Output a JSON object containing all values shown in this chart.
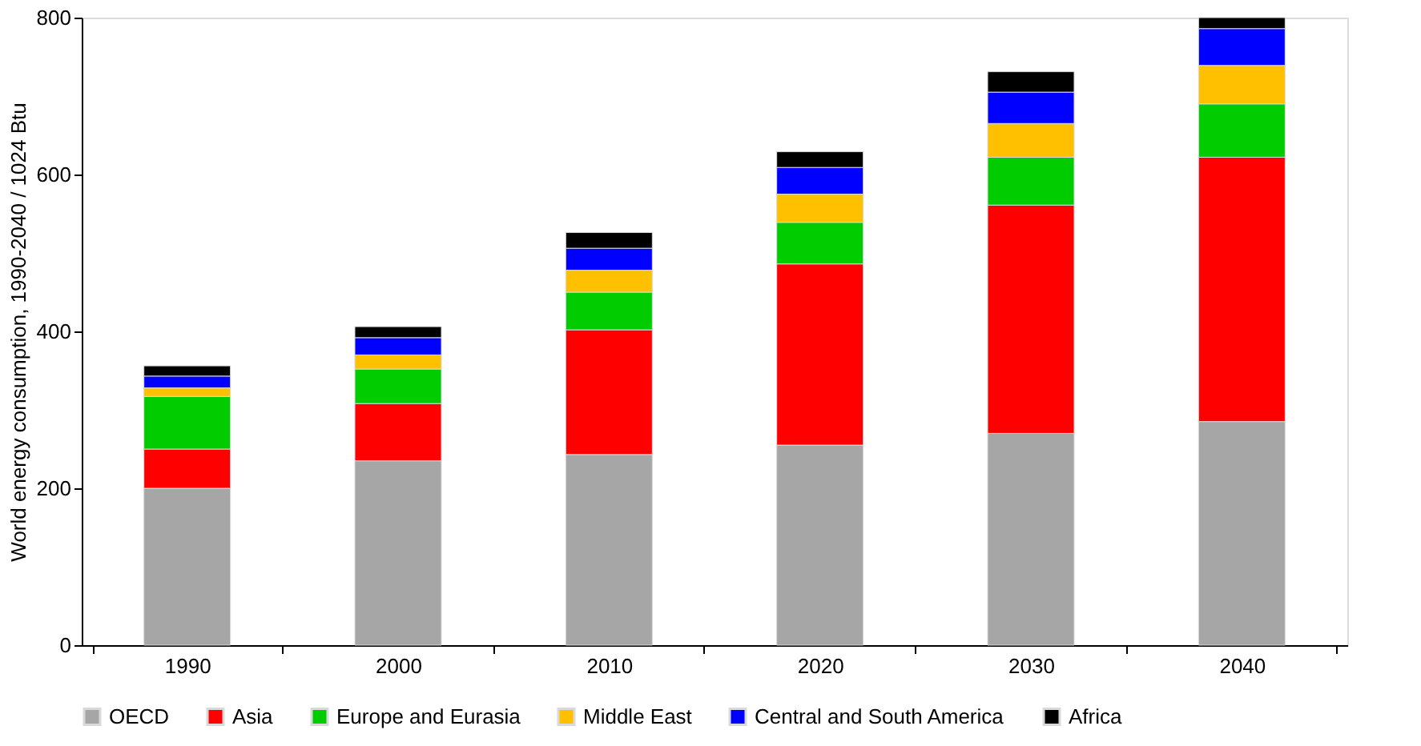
{
  "chart_data": {
    "type": "bar",
    "stacked": true,
    "ylabel": "World energy consumption, 1990-2040 / 1024 Btu",
    "categories": [
      "1990",
      "2000",
      "2010",
      "2020",
      "2030",
      "2040"
    ],
    "series": [
      {
        "name": "OECD",
        "color": "#a6a6a6",
        "values": [
          200,
          235,
          243,
          255,
          270,
          285
        ]
      },
      {
        "name": "Asia",
        "color": "#ff0000",
        "values": [
          50,
          73,
          159,
          231,
          291,
          337
        ]
      },
      {
        "name": "Europe and Eurasia",
        "color": "#00cc00",
        "values": [
          67,
          44,
          48,
          53,
          61,
          68
        ]
      },
      {
        "name": "Middle East",
        "color": "#ffc000",
        "values": [
          11,
          18,
          28,
          36,
          43,
          49
        ]
      },
      {
        "name": "Central and South America",
        "color": "#0000ff",
        "values": [
          15,
          22,
          28,
          34,
          40,
          47
        ]
      },
      {
        "name": "Africa",
        "color": "#000000",
        "values": [
          13,
          14,
          20,
          20,
          26,
          14
        ]
      }
    ],
    "ylim": [
      0,
      800
    ],
    "yticks": [
      0,
      200,
      400,
      600,
      800
    ],
    "grid": false,
    "legend": "bottom"
  }
}
